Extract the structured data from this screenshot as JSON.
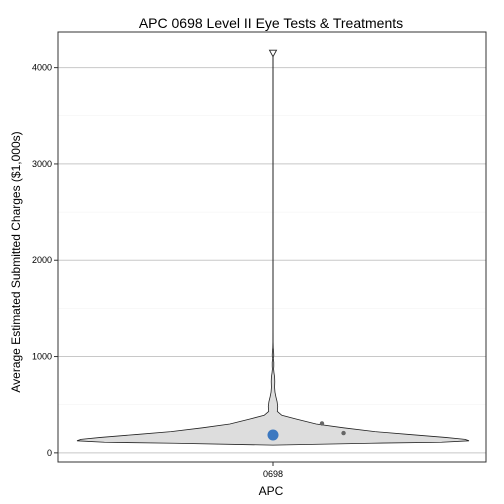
{
  "chart_data": {
    "type": "violin",
    "title": "APC 0698 Level II Eye Tests & Treatments",
    "xlabel": "APC",
    "ylabel": "Average Estimated Submitted Charges ($1,000s)",
    "categories": [
      "0698"
    ],
    "y_ticks": [
      0,
      1000,
      2000,
      3000,
      4000
    ],
    "y_tick_labels": [
      "0",
      "1000",
      "2000",
      "3000",
      "4000"
    ],
    "ylim": [
      -95,
      4370
    ],
    "grid": true,
    "background": "#ffffff",
    "violin": {
      "fill": "#dddddd",
      "stroke": "#222222",
      "profile": [
        [
          80,
          0.0
        ],
        [
          100,
          0.5
        ],
        [
          110,
          0.86
        ],
        [
          125,
          1.0
        ],
        [
          140,
          0.98
        ],
        [
          160,
          0.88
        ],
        [
          190,
          0.7
        ],
        [
          220,
          0.52
        ],
        [
          260,
          0.36
        ],
        [
          300,
          0.22
        ],
        [
          350,
          0.12
        ],
        [
          390,
          0.045
        ],
        [
          430,
          0.022
        ],
        [
          480,
          0.024
        ],
        [
          530,
          0.021
        ],
        [
          580,
          0.015
        ],
        [
          630,
          0.01
        ],
        [
          680,
          0.008
        ],
        [
          740,
          0.009
        ],
        [
          790,
          0.008
        ],
        [
          830,
          0.005
        ],
        [
          870,
          0.003
        ],
        [
          900,
          0.004
        ],
        [
          940,
          0.004
        ],
        [
          980,
          0.0015
        ],
        [
          1010,
          0.004
        ],
        [
          1050,
          0.003
        ],
        [
          1090,
          0.0012
        ],
        [
          1150,
          0.0006
        ],
        [
          1300,
          0.0005
        ],
        [
          2000,
          0.0005
        ],
        [
          3000,
          0.0005
        ],
        [
          4150,
          0.0005
        ]
      ],
      "max_value": 4150
    },
    "mean_point": {
      "value": 185,
      "color": "#3c78c0"
    },
    "jitter_points": [
      {
        "value": 305,
        "offset": 0.25,
        "color": "#666666"
      },
      {
        "value": 205,
        "offset": 0.36,
        "color": "#666666"
      }
    ]
  }
}
